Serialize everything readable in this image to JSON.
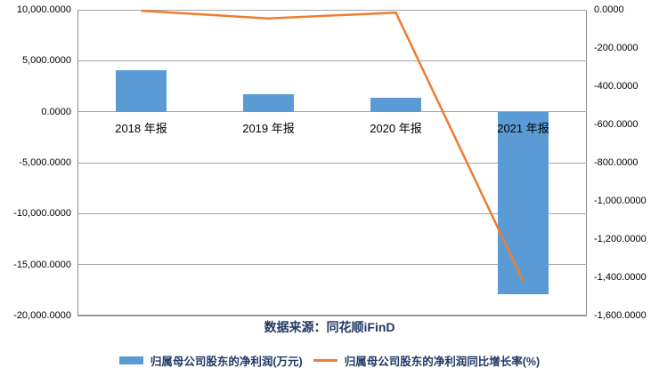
{
  "chart_data": {
    "type": "bar-line-combo",
    "categories": [
      "2018 年报",
      "2019 年报",
      "2020 年报",
      "2021 年报"
    ],
    "series": [
      {
        "name": "归属母公司股东的净利润(万元)",
        "type": "bar",
        "axis": "left",
        "values": [
          4100,
          1680,
          1340,
          -17900
        ]
      },
      {
        "name": "归属母公司股东的净利润同比增长率(%)",
        "type": "line",
        "axis": "right",
        "values": [
          -5,
          -45,
          -15,
          -1420
        ]
      }
    ],
    "left_axis": {
      "min": -20000,
      "max": 10000,
      "step": 5000,
      "tick_labels": [
        "10,000.0000",
        "5,000.0000",
        "0.0000",
        "-5,000.0000",
        "-10,000.0000",
        "-15,000.0000",
        "-20,000.0000"
      ]
    },
    "right_axis": {
      "min": -1600,
      "max": 0,
      "step": 200,
      "tick_labels": [
        "0.0000",
        "-200.0000",
        "-400.0000",
        "-600.0000",
        "-800.0000",
        "-1,000.0000",
        "-1,200.0000",
        "-1,400.0000",
        "-1,600.0000"
      ]
    },
    "grid": true,
    "legend_position": "bottom"
  },
  "source_note": "数据来源：同花顺iFinD",
  "legend": {
    "bar_label": "归属母公司股东的净利润(万元)",
    "line_label": "归属母公司股东的净利润同比增长率(%)"
  },
  "colors": {
    "bar": "#5B9BD5",
    "line": "#ED7D31",
    "navy_text": "#1F3864",
    "gridline": "#A6A6A6",
    "plot_border": "#8C8C8C",
    "axis_text": "#000000"
  }
}
